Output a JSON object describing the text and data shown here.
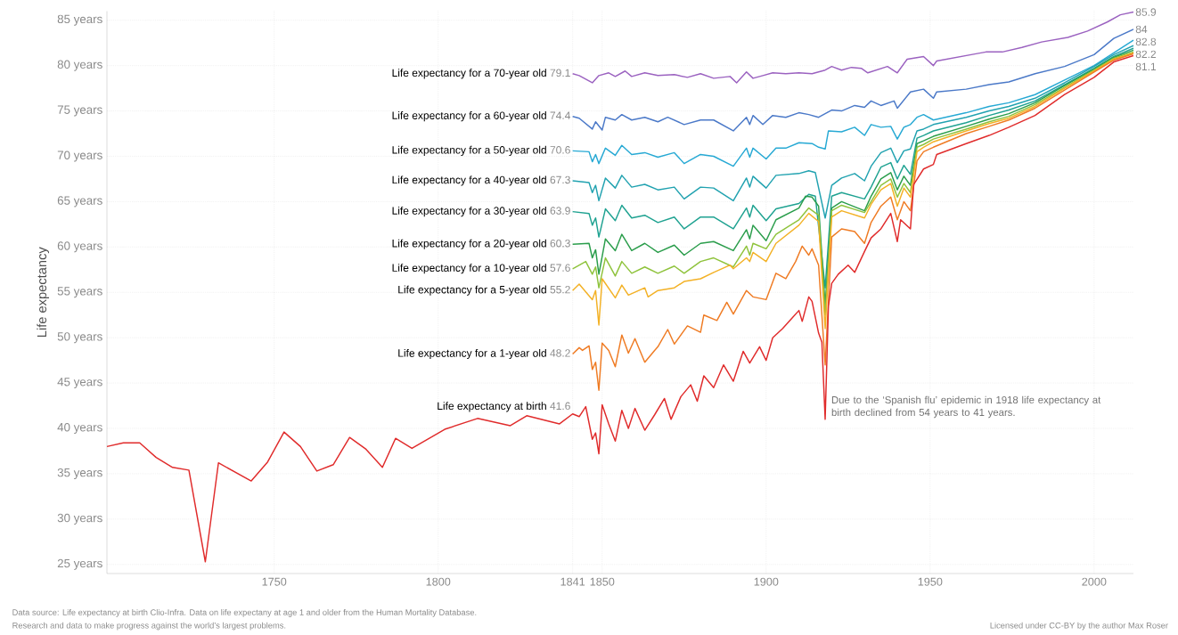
{
  "chart_data": {
    "type": "line",
    "ylabel": "Life expectancy",
    "xlim": [
      1699,
      2012
    ],
    "ylim": [
      24,
      86
    ],
    "xticks": [
      1750,
      1800,
      1841,
      1850,
      1900,
      1950,
      2000
    ],
    "yticks": [
      {
        "value": 25,
        "label": "25 years"
      },
      {
        "value": 30,
        "label": "30 years"
      },
      {
        "value": 35,
        "label": "35 years"
      },
      {
        "value": 40,
        "label": "40 years"
      },
      {
        "value": 45,
        "label": "45 years"
      },
      {
        "value": 50,
        "label": "50 years"
      },
      {
        "value": 55,
        "label": "55 years"
      },
      {
        "value": 60,
        "label": "60 years"
      },
      {
        "value": 65,
        "label": "65 years"
      },
      {
        "value": 70,
        "label": "70 years"
      },
      {
        "value": 75,
        "label": "75 years"
      },
      {
        "value": 80,
        "label": "80 years"
      },
      {
        "value": 85,
        "label": "85 years"
      }
    ],
    "grid": true,
    "series": [
      {
        "name": "Life expectancy for a 70-year old",
        "color": "#9b62c0",
        "x": [
          1841,
          1843,
          1847,
          1849,
          1852,
          1854,
          1857,
          1859,
          1863,
          1867,
          1872,
          1876,
          1880,
          1884,
          1889,
          1891,
          1894,
          1896,
          1899,
          1902,
          1906,
          1910,
          1914,
          1918,
          1920,
          1923,
          1926,
          1929,
          1931,
          1937,
          1940,
          1943,
          1948,
          1951,
          1952,
          1964,
          1967,
          1972,
          1978,
          1984,
          1992,
          1998,
          2004,
          2008,
          2012
        ],
        "values": [
          79.1,
          78.9,
          78.1,
          78.9,
          79.2,
          78.8,
          79.4,
          78.8,
          79.2,
          78.9,
          79.0,
          78.7,
          79.1,
          78.6,
          78.8,
          78.1,
          79.3,
          78.6,
          78.9,
          79.2,
          79.1,
          79.2,
          79.1,
          79.5,
          79.9,
          79.5,
          79.8,
          79.7,
          79.2,
          79.9,
          79.2,
          80.7,
          81.0,
          80.0,
          80.5,
          81.3,
          81.5,
          81.5,
          82.0,
          82.6,
          83.1,
          83.8,
          84.8,
          85.6,
          85.9
        ],
        "value_labels": [
          "79.1",
          null,
          null,
          null,
          null,
          null,
          null,
          null,
          null,
          null,
          null,
          null,
          null,
          null,
          null,
          null,
          null,
          null,
          null,
          null,
          null,
          null,
          null,
          null,
          null,
          null,
          null,
          null,
          null,
          null,
          null,
          null,
          null,
          null,
          null,
          null,
          null,
          null,
          null,
          null,
          null,
          null,
          null,
          null,
          "85.9"
        ]
      },
      {
        "name": "Life expectancy for a 60-year old",
        "color": "#4b79c8",
        "x": [
          1841,
          1843,
          1847,
          1848,
          1850,
          1851,
          1854,
          1856,
          1859,
          1863,
          1867,
          1870,
          1875,
          1880,
          1884,
          1890,
          1894,
          1895,
          1896,
          1899,
          1902,
          1906,
          1910,
          1913,
          1916,
          1920,
          1923,
          1927,
          1930,
          1932,
          1935,
          1939,
          1940,
          1944,
          1948,
          1951,
          1952,
          1961,
          1968,
          1974,
          1982,
          1991,
          2000,
          2006,
          2012
        ],
        "values": [
          74.4,
          74.2,
          73.0,
          73.8,
          72.9,
          74.3,
          74.0,
          74.6,
          74.0,
          74.3,
          73.8,
          74.3,
          73.5,
          74.0,
          74.0,
          72.8,
          74.3,
          73.5,
          74.5,
          73.5,
          74.5,
          74.3,
          74.8,
          74.6,
          74.3,
          75.1,
          75.0,
          75.6,
          75.4,
          76.1,
          75.6,
          76.1,
          75.3,
          77.1,
          77.4,
          76.4,
          77.1,
          77.4,
          77.9,
          78.2,
          79.1,
          79.9,
          81.2,
          83.0,
          84.0
        ],
        "value_labels": [
          "74.4",
          null,
          null,
          null,
          null,
          null,
          null,
          null,
          null,
          null,
          null,
          null,
          null,
          null,
          null,
          null,
          null,
          null,
          null,
          null,
          null,
          null,
          null,
          null,
          null,
          null,
          null,
          null,
          null,
          null,
          null,
          null,
          null,
          null,
          null,
          null,
          null,
          null,
          null,
          null,
          null,
          null,
          null,
          null,
          "84"
        ]
      },
      {
        "name": "Life expectancy for a 50-year old",
        "color": "#27a9d4",
        "x": [
          1841,
          1846,
          1847,
          1848,
          1849,
          1851,
          1854,
          1856,
          1859,
          1863,
          1867,
          1872,
          1875,
          1880,
          1884,
          1890,
          1894,
          1895,
          1896,
          1900,
          1903,
          1906,
          1910,
          1914,
          1916,
          1918,
          1919,
          1923,
          1927,
          1930,
          1932,
          1935,
          1938,
          1940,
          1942,
          1944,
          1946,
          1948,
          1951,
          1961,
          1968,
          1974,
          1982,
          1991,
          2000,
          2006,
          2012
        ],
        "values": [
          70.6,
          70.5,
          69.4,
          70.2,
          69.2,
          70.9,
          70.1,
          71.2,
          70.2,
          70.4,
          69.9,
          70.4,
          69.2,
          70.2,
          70.0,
          68.9,
          70.9,
          69.9,
          70.9,
          69.7,
          70.9,
          70.9,
          71.5,
          71.4,
          71.0,
          70.8,
          72.8,
          72.7,
          73.2,
          72.3,
          73.5,
          73.2,
          73.3,
          71.9,
          73.2,
          73.5,
          74.3,
          74.6,
          74.0,
          74.8,
          75.5,
          75.9,
          76.8,
          78.4,
          80.0,
          81.4,
          82.8
        ],
        "value_labels": [
          "70.6",
          null,
          null,
          null,
          null,
          null,
          null,
          null,
          null,
          null,
          null,
          null,
          null,
          null,
          null,
          null,
          null,
          null,
          null,
          null,
          null,
          null,
          null,
          null,
          null,
          null,
          null,
          null,
          null,
          null,
          null,
          null,
          null,
          null,
          null,
          null,
          null,
          null,
          null,
          null,
          null,
          null,
          null,
          null,
          null,
          null,
          "82.8"
        ]
      },
      {
        "name": "Life expectancy for a 40-year old",
        "color": "#21a2b0",
        "x": [
          1841,
          1846,
          1847,
          1848,
          1849,
          1851,
          1854,
          1856,
          1859,
          1863,
          1867,
          1872,
          1875,
          1880,
          1884,
          1890,
          1894,
          1895,
          1896,
          1900,
          1903,
          1910,
          1913,
          1915,
          1918,
          1920,
          1923,
          1927,
          1930,
          1932,
          1935,
          1938,
          1940,
          1942,
          1944,
          1946,
          1948,
          1951,
          1961,
          1968,
          1974,
          1982,
          1991,
          2000,
          2006,
          2012
        ],
        "values": [
          67.3,
          67.1,
          66.0,
          66.8,
          65.1,
          67.6,
          66.5,
          67.9,
          66.6,
          66.9,
          66.3,
          66.6,
          65.3,
          66.6,
          66.5,
          65.1,
          67.6,
          66.6,
          67.8,
          66.5,
          67.9,
          68.1,
          68.4,
          68.2,
          63.2,
          66.8,
          67.6,
          68.1,
          67.3,
          68.9,
          70.4,
          70.9,
          69.3,
          70.6,
          70.8,
          72.8,
          73.0,
          73.5,
          74.3,
          75.0,
          75.5,
          76.4,
          78.1,
          79.9,
          81.2,
          82.2
        ],
        "value_labels": [
          "67.3",
          null,
          null,
          null,
          null,
          null,
          null,
          null,
          null,
          null,
          null,
          null,
          null,
          null,
          null,
          null,
          null,
          null,
          null,
          null,
          null,
          null,
          null,
          null,
          null,
          null,
          null,
          null,
          null,
          null,
          null,
          null,
          null,
          null,
          null,
          null,
          null,
          null,
          null,
          null,
          null,
          null,
          null,
          null,
          null,
          "82.2"
        ]
      },
      {
        "name": "Life expectancy for a 30-year old",
        "color": "#1fa291",
        "x": [
          1841,
          1846,
          1847,
          1848,
          1849,
          1851,
          1854,
          1856,
          1859,
          1863,
          1867,
          1872,
          1875,
          1880,
          1884,
          1890,
          1894,
          1895,
          1896,
          1900,
          1903,
          1910,
          1913,
          1915,
          1918,
          1920,
          1923,
          1930,
          1932,
          1935,
          1938,
          1940,
          1942,
          1944,
          1946,
          1948,
          1951,
          1961,
          1968,
          1974,
          1982,
          1991,
          2000,
          2006,
          2012
        ],
        "values": [
          63.9,
          63.7,
          62.4,
          63.2,
          61.1,
          64.2,
          62.9,
          64.6,
          63.2,
          63.5,
          62.7,
          63.3,
          62.0,
          63.3,
          63.3,
          62.0,
          64.3,
          63.3,
          64.6,
          62.9,
          64.2,
          64.8,
          65.8,
          65.6,
          55.5,
          65.6,
          66.0,
          65.3,
          66.6,
          68.8,
          69.3,
          67.5,
          69.0,
          68.0,
          72.0,
          72.3,
          72.8,
          73.7,
          74.5,
          75.1,
          76.1,
          77.9,
          79.7,
          81.0,
          81.9
        ],
        "value_labels": [
          "63.9",
          null,
          null,
          null,
          null,
          null,
          null,
          null,
          null,
          null,
          null,
          null,
          null,
          null,
          null,
          null,
          null,
          null,
          null,
          null,
          null,
          null,
          null,
          null,
          null,
          null,
          null,
          null,
          null,
          null,
          null,
          null,
          null,
          null,
          null,
          null,
          null,
          null,
          null,
          null,
          null,
          null,
          null,
          null,
          null
        ]
      },
      {
        "name": "Life expectancy for a 20-year old",
        "color": "#2a9d4b",
        "x": [
          1841,
          1846,
          1847,
          1848,
          1849,
          1851,
          1854,
          1856,
          1859,
          1863,
          1867,
          1872,
          1875,
          1880,
          1884,
          1890,
          1894,
          1895,
          1896,
          1900,
          1903,
          1910,
          1912,
          1914,
          1916,
          1918,
          1920,
          1923,
          1930,
          1932,
          1935,
          1938,
          1940,
          1942,
          1944,
          1946,
          1948,
          1951,
          1961,
          1968,
          1974,
          1982,
          1991,
          2000,
          2006,
          2012
        ],
        "values": [
          60.3,
          60.4,
          58.8,
          59.7,
          57.0,
          60.9,
          59.6,
          61.4,
          59.6,
          60.4,
          59.4,
          60.2,
          59.1,
          60.4,
          60.6,
          59.6,
          61.9,
          60.9,
          62.4,
          60.7,
          63.0,
          64.3,
          65.6,
          65.5,
          64.5,
          53.6,
          64.3,
          65.0,
          64.0,
          65.6,
          67.5,
          68.2,
          66.3,
          67.8,
          66.8,
          71.4,
          71.7,
          72.2,
          73.3,
          74.1,
          74.7,
          75.9,
          77.8,
          79.6,
          80.9,
          81.7
        ],
        "value_labels": [
          "60.3",
          null,
          null,
          null,
          null,
          null,
          null,
          null,
          null,
          null,
          null,
          null,
          null,
          null,
          null,
          null,
          null,
          null,
          null,
          null,
          null,
          null,
          null,
          null,
          null,
          null,
          null,
          null,
          null,
          null,
          null,
          null,
          null,
          null,
          null,
          null,
          null,
          null,
          null,
          null,
          null,
          null,
          null,
          null,
          null,
          null
        ]
      },
      {
        "name": "Life expectancy for a 10-year old",
        "color": "#8fc33c",
        "x": [
          1841,
          1845,
          1847,
          1848,
          1849,
          1851,
          1854,
          1856,
          1859,
          1863,
          1867,
          1872,
          1875,
          1880,
          1884,
          1890,
          1894,
          1895,
          1896,
          1900,
          1903,
          1910,
          1913,
          1916,
          1918,
          1920,
          1923,
          1930,
          1932,
          1935,
          1938,
          1940,
          1942,
          1944,
          1946,
          1948,
          1951,
          1961,
          1968,
          1974,
          1982,
          1991,
          2000,
          2006,
          2012
        ],
        "values": [
          57.6,
          58.4,
          57.0,
          57.8,
          55.5,
          58.8,
          56.8,
          58.4,
          57.1,
          57.8,
          57.1,
          57.9,
          57.1,
          58.4,
          58.8,
          57.8,
          60.1,
          59.1,
          60.4,
          59.8,
          61.4,
          63.0,
          64.3,
          63.5,
          52.5,
          64.0,
          64.6,
          63.8,
          65.0,
          66.8,
          67.5,
          65.5,
          67.0,
          66.0,
          71.0,
          71.3,
          71.9,
          73.0,
          73.8,
          74.4,
          75.7,
          77.6,
          79.5,
          80.8,
          81.5
        ],
        "value_labels": [
          "57.6",
          null,
          null,
          null,
          null,
          null,
          null,
          null,
          null,
          null,
          null,
          null,
          null,
          null,
          null,
          null,
          null,
          null,
          null,
          null,
          null,
          null,
          null,
          null,
          null,
          null,
          null,
          null,
          null,
          null,
          null,
          null,
          null,
          null,
          null,
          null,
          null,
          null,
          null,
          null,
          null,
          null,
          null,
          null,
          null
        ]
      },
      {
        "name": "Life expectancy for a 5-year old",
        "color": "#f3b125",
        "x": [
          1841,
          1843,
          1847,
          1848,
          1849,
          1850,
          1854,
          1856,
          1858,
          1863,
          1864,
          1867,
          1872,
          1875,
          1880,
          1884,
          1889,
          1890,
          1894,
          1895,
          1896,
          1900,
          1903,
          1910,
          1913,
          1916,
          1918,
          1920,
          1923,
          1930,
          1932,
          1935,
          1938,
          1940,
          1942,
          1944,
          1946,
          1948,
          1951,
          1961,
          1968,
          1974,
          1982,
          1991,
          2000,
          2006,
          2012
        ],
        "values": [
          55.2,
          55.9,
          54.2,
          55.2,
          51.4,
          56.5,
          54.4,
          55.8,
          54.7,
          55.5,
          54.5,
          55.2,
          55.5,
          56.2,
          56.5,
          57.2,
          58.0,
          57.6,
          58.8,
          58.4,
          59.4,
          58.4,
          60.4,
          62.4,
          63.7,
          62.8,
          51.0,
          63.3,
          64.0,
          63.2,
          64.7,
          66.3,
          67.0,
          64.5,
          66.5,
          65.5,
          70.5,
          71.0,
          71.6,
          72.8,
          73.6,
          74.2,
          75.5,
          77.5,
          79.4,
          80.7,
          81.4
        ],
        "value_labels": [
          "55.2",
          null,
          null,
          null,
          null,
          null,
          null,
          null,
          null,
          null,
          null,
          null,
          null,
          null,
          null,
          null,
          null,
          null,
          null,
          null,
          null,
          null,
          null,
          null,
          null,
          null,
          null,
          null,
          null,
          null,
          null,
          null,
          null,
          null,
          null,
          null,
          null,
          null,
          null,
          null,
          null,
          null,
          null,
          null,
          null,
          null,
          null
        ]
      },
      {
        "name": "Life expectancy for a 1-year old",
        "color": "#ef7b23",
        "x": [
          1841,
          1843,
          1844,
          1846,
          1847,
          1848,
          1849,
          1850,
          1852,
          1854,
          1856,
          1858,
          1860,
          1863,
          1866,
          1867,
          1870,
          1872,
          1876,
          1880,
          1881,
          1885,
          1888,
          1890,
          1894,
          1896,
          1900,
          1903,
          1906,
          1909,
          1911,
          1913,
          1914,
          1916,
          1918,
          1920,
          1923,
          1927,
          1930,
          1932,
          1935,
          1938,
          1940,
          1942,
          1944,
          1946,
          1948,
          1951,
          1961,
          1968,
          1974,
          1982,
          1991,
          2000,
          2006,
          2012
        ],
        "values": [
          48.2,
          48.9,
          48.6,
          49.1,
          46.5,
          47.3,
          44.2,
          49.4,
          48.6,
          46.8,
          50.3,
          48.3,
          49.9,
          47.3,
          48.6,
          49.0,
          50.9,
          49.3,
          51.3,
          50.6,
          52.5,
          51.9,
          53.9,
          52.6,
          55.2,
          54.5,
          54.2,
          57.1,
          56.5,
          58.4,
          60.1,
          59.1,
          59.8,
          58.0,
          47.0,
          61.1,
          62.0,
          61.7,
          60.4,
          62.7,
          64.5,
          65.5,
          63.0,
          65.0,
          64.0,
          69.5,
          70.5,
          71.0,
          72.5,
          73.3,
          74.0,
          75.3,
          77.3,
          79.3,
          80.6,
          81.3
        ],
        "value_labels": [
          "48.2",
          null,
          null,
          null,
          null,
          null,
          null,
          null,
          null,
          null,
          null,
          null,
          null,
          null,
          null,
          null,
          null,
          null,
          null,
          null,
          null,
          null,
          null,
          null,
          null,
          null,
          null,
          null,
          null,
          null,
          null,
          null,
          null,
          null,
          null,
          null,
          null,
          null,
          null,
          null,
          null,
          null,
          null,
          null,
          null,
          null,
          null,
          null,
          null,
          null,
          null,
          null,
          null,
          null,
          null,
          null
        ]
      },
      {
        "name": "Life expectancy at birth",
        "color": "#e02b2b",
        "x": [
          1699,
          1704,
          1709,
          1714,
          1719,
          1724,
          1729,
          1733,
          1743,
          1748,
          1753,
          1758,
          1763,
          1768,
          1773,
          1778,
          1783,
          1787,
          1792,
          1802,
          1812,
          1822,
          1827,
          1837,
          1841,
          1843,
          1845,
          1847,
          1848,
          1849,
          1850,
          1852,
          1854,
          1856,
          1858,
          1860,
          1863,
          1866,
          1869,
          1871,
          1874,
          1877,
          1879,
          1881,
          1884,
          1887,
          1890,
          1893,
          1895,
          1898,
          1900,
          1902,
          1905,
          1908,
          1910,
          1911,
          1913,
          1914,
          1916,
          1917,
          1918,
          1919,
          1920,
          1922,
          1925,
          1927,
          1930,
          1932,
          1935,
          1938,
          1940,
          1941,
          1944,
          1945,
          1948,
          1951,
          1952,
          1961,
          1968,
          1974,
          1982,
          1991,
          2000,
          2006,
          2012
        ],
        "values": [
          38.0,
          38.4,
          38.4,
          36.8,
          35.7,
          35.4,
          25.3,
          36.2,
          34.2,
          36.3,
          39.6,
          38.0,
          35.3,
          36.0,
          39.0,
          37.7,
          35.7,
          38.9,
          37.8,
          39.9,
          41.1,
          40.3,
          41.4,
          40.5,
          41.6,
          41.3,
          42.4,
          38.8,
          39.5,
          37.2,
          42.6,
          40.5,
          38.6,
          42.0,
          40.0,
          42.2,
          39.8,
          41.5,
          43.3,
          41.0,
          43.5,
          44.8,
          43.0,
          45.8,
          44.5,
          47.0,
          45.2,
          48.5,
          47.2,
          49.0,
          47.5,
          50.0,
          51.0,
          52.2,
          53.0,
          51.8,
          54.5,
          54.0,
          50.5,
          49.5,
          41.0,
          53.5,
          56.0,
          57.0,
          58.0,
          57.2,
          59.5,
          61.0,
          62.0,
          63.7,
          60.6,
          63.0,
          62.0,
          66.9,
          68.6,
          69.1,
          70.2,
          71.4,
          72.3,
          73.2,
          74.5,
          76.8,
          78.7,
          80.4,
          81.1
        ],
        "value_labels": [
          null,
          null,
          null,
          null,
          null,
          null,
          null,
          null,
          null,
          null,
          null,
          null,
          null,
          null,
          null,
          null,
          null,
          null,
          null,
          null,
          null,
          null,
          null,
          null,
          "41.6",
          null,
          null,
          null,
          null,
          null,
          null,
          null,
          null,
          null,
          null,
          null,
          null,
          null,
          null,
          null,
          null,
          null,
          null,
          null,
          null,
          null,
          null,
          null,
          null,
          null,
          null,
          null,
          null,
          null,
          null,
          null,
          null,
          null,
          null,
          null,
          null,
          null,
          null,
          null,
          null,
          null,
          null,
          null,
          null,
          null,
          null,
          null,
          null,
          null,
          null,
          null,
          null,
          null,
          null,
          null,
          null,
          null,
          null,
          null,
          "81.1"
        ]
      }
    ],
    "annotations": [
      {
        "text": "Due to the ‘Spanish flu’ epidemic in 1918 life expectancy at birth declined from 54 years to 41 years.",
        "x": 1918,
        "y": 41
      },
      "Data source: Life expectancy at birth Clio-Infra. Data on life expectany at age 1 and older from the Human Mortality Database.",
      "Research and data to make progress against the world’s largest problems.",
      "Licensed under CC-BY by the author Max Roser"
    ]
  }
}
